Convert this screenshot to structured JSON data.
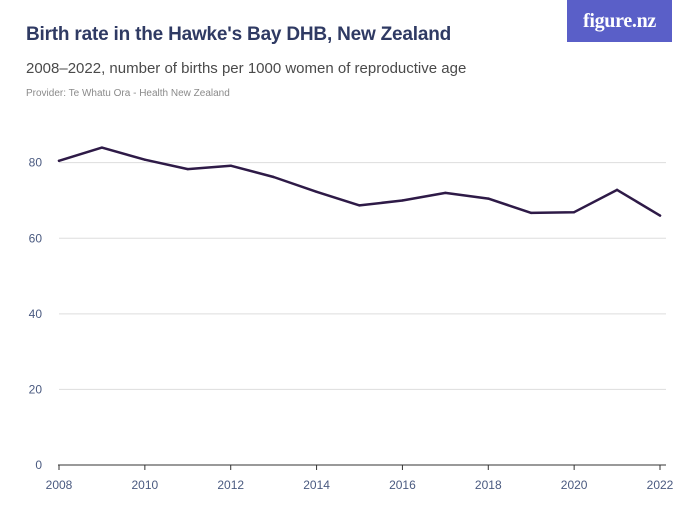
{
  "header": {
    "title": "Birth rate in the Hawke's Bay DHB, New Zealand",
    "subtitle": "2008–2022, number of births per 1000 women of reproductive age",
    "provider": "Provider: Te Whatu Ora - Health New Zealand",
    "logo_text": "figure.nz"
  },
  "colors": {
    "line": "#2e1a47",
    "grid": "#dddddd",
    "axis": "#333333",
    "logo_bg": "#5a5fc8"
  },
  "chart_data": {
    "type": "line",
    "title": "Birth rate in the Hawke's Bay DHB, New Zealand",
    "xlabel": "",
    "ylabel": "",
    "x": [
      2008,
      2009,
      2010,
      2011,
      2012,
      2013,
      2014,
      2015,
      2016,
      2017,
      2018,
      2019,
      2020,
      2021,
      2022
    ],
    "series": [
      {
        "values": [
          80.5,
          84.0,
          80.8,
          78.3,
          79.2,
          76.2,
          72.3,
          68.7,
          70.0,
          72.0,
          70.5,
          66.7,
          66.9,
          72.8,
          66.0
        ]
      }
    ],
    "xlim": [
      2008,
      2022
    ],
    "ylim": [
      0,
      90
    ],
    "x_ticks": [
      "2008",
      "2010",
      "2012",
      "2014",
      "2016",
      "2018",
      "2020",
      "2022"
    ],
    "y_ticks": [
      "0",
      "20",
      "40",
      "60",
      "80"
    ],
    "grid": true,
    "legend": "none"
  }
}
